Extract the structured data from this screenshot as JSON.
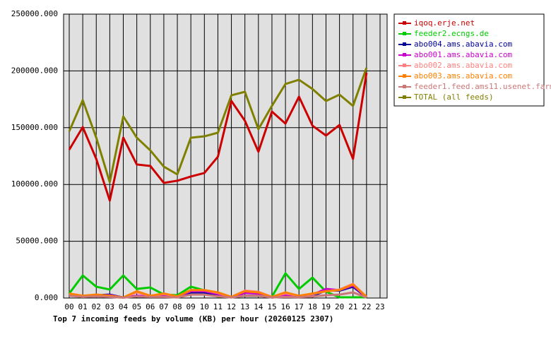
{
  "chart_data": {
    "type": "line",
    "title": "Top 7 incoming feeds by volume (KB) per hour (20260125 2307)",
    "categories": [
      "00",
      "01",
      "02",
      "03",
      "04",
      "05",
      "06",
      "07",
      "08",
      "09",
      "10",
      "11",
      "12",
      "13",
      "14",
      "15",
      "16",
      "17",
      "18",
      "19",
      "20",
      "21",
      "22",
      "23"
    ],
    "ylim": [
      0,
      250000
    ],
    "yticks": [
      {
        "value": 0,
        "label": "0.000"
      },
      {
        "value": 50000,
        "label": "50000.000"
      },
      {
        "value": 100000,
        "label": "100000.000"
      },
      {
        "value": 150000,
        "label": "150000.000"
      },
      {
        "value": 200000,
        "label": "200000.000"
      },
      {
        "value": 250000,
        "label": "250000.000"
      }
    ],
    "grid": true,
    "legend": "right",
    "series": [
      {
        "name": "iqoq.erje.net",
        "color": "#cc0000",
        "values": [
          130600,
          150500,
          122500,
          85800,
          141200,
          117600,
          116300,
          101400,
          103300,
          107000,
          110100,
          124400,
          173500,
          156100,
          128800,
          164200,
          153600,
          177300,
          151800,
          143100,
          152400,
          122500,
          198400,
          null
        ]
      },
      {
        "name": "feeder2.ecngs.de",
        "color": "#00cc00",
        "values": [
          4000,
          19900,
          10000,
          7500,
          19900,
          8000,
          9300,
          3100,
          2500,
          10000,
          6800,
          1200,
          1200,
          1900,
          1900,
          1200,
          21800,
          8000,
          18000,
          5600,
          600,
          600,
          600,
          null
        ]
      },
      {
        "name": "abo004.ams.abavia.com",
        "color": "#000099",
        "values": [
          3000,
          1500,
          2500,
          3000,
          500,
          1500,
          1500,
          1500,
          1000,
          5000,
          5000,
          2000,
          500,
          2000,
          2000,
          500,
          1500,
          1000,
          2000,
          6500,
          6500,
          10000,
          500,
          null
        ]
      },
      {
        "name": "abo001.ams.abavia.com",
        "color": "#cc00cc",
        "values": [
          3500,
          1500,
          2500,
          2500,
          500,
          2000,
          1500,
          2500,
          1000,
          6000,
          6000,
          3500,
          500,
          4500,
          4000,
          500,
          2500,
          1500,
          3000,
          8000,
          7000,
          11000,
          500,
          null
        ]
      },
      {
        "name": "abo002.ams.abavia.com",
        "color": "#ff8080",
        "values": [
          3500,
          2000,
          3000,
          2000,
          500,
          5000,
          2000,
          3500,
          1500,
          7000,
          7000,
          4500,
          1000,
          6500,
          5500,
          1000,
          4000,
          2000,
          3500,
          6000,
          7500,
          12500,
          1000,
          null
        ]
      },
      {
        "name": "abo003.ams.abavia.com",
        "color": "#ff8000",
        "values": [
          4000,
          2000,
          3000,
          2000,
          500,
          6000,
          2000,
          4000,
          1500,
          7000,
          7000,
          5000,
          1000,
          6000,
          5000,
          1000,
          5000,
          2000,
          4000,
          6000,
          7000,
          12000,
          1000,
          null
        ]
      },
      {
        "name": "feeder1.feed.ams11.usenet.farm",
        "color": "#cc7777",
        "values": [
          2000,
          1000,
          1500,
          1000,
          300,
          1500,
          1000,
          1000,
          500,
          3000,
          3000,
          1500,
          500,
          2000,
          2000,
          500,
          1000,
          800,
          1500,
          2500,
          3000,
          5000,
          500,
          null
        ]
      },
      {
        "name": "TOTAL (all feeds)",
        "color": "#808000",
        "values": [
          146800,
          174200,
          141200,
          102000,
          159900,
          141200,
          130000,
          115700,
          108900,
          141200,
          142400,
          145600,
          178500,
          181600,
          148700,
          169200,
          188500,
          192200,
          184100,
          173500,
          179100,
          169200,
          202800,
          null
        ]
      }
    ]
  }
}
